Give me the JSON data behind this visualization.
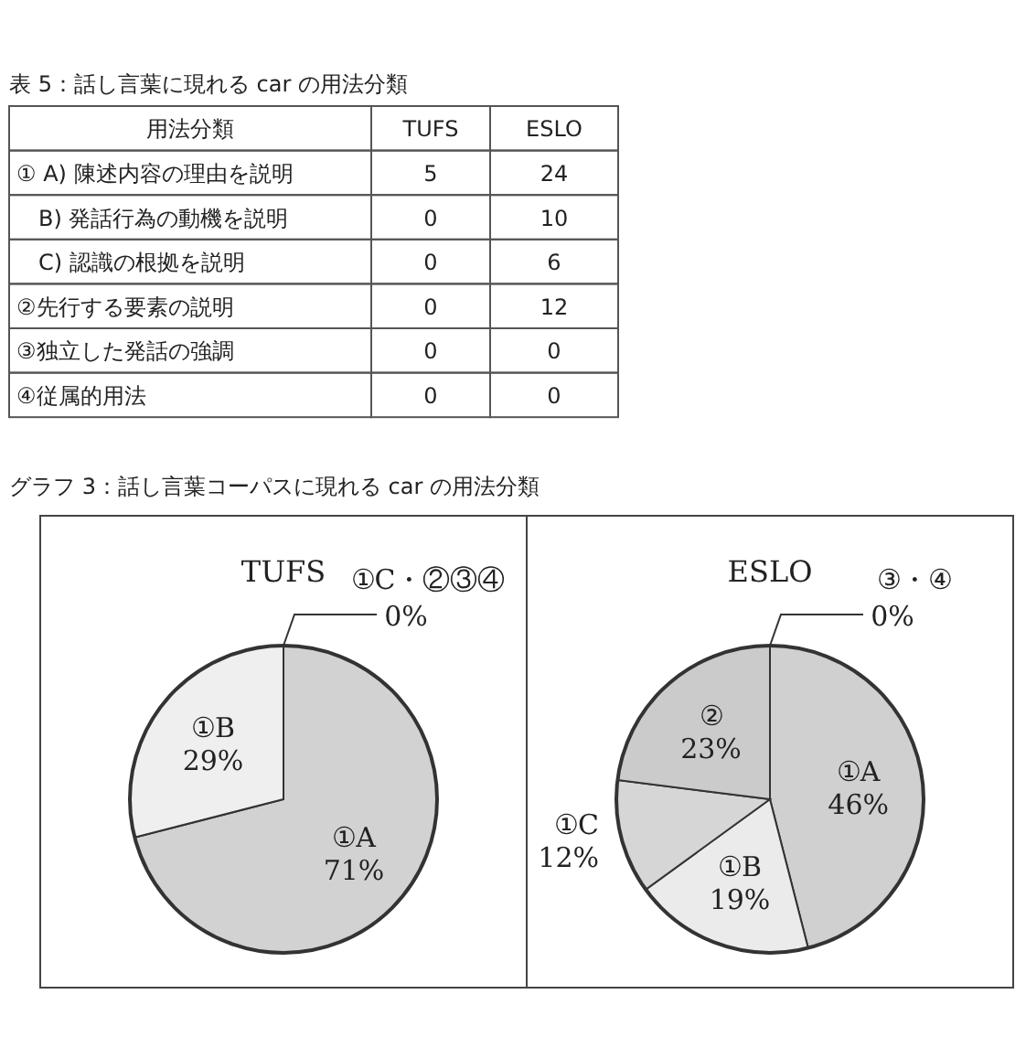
{
  "chart_data": [
    {
      "type": "other",
      "title": "表 5：話し言葉に現れる car の用法分類",
      "annotations": [
        "用法分類",
        "TUFS",
        "ESLO",
        "① A) 陳述内容の理由を説明",
        "5",
        "24",
        "　B) 発話行為の動機を説明",
        "0",
        "10",
        "　C) 認識の根拠を説明",
        "0",
        "6",
        "②先行する要素の説明",
        "0",
        "12",
        "③独立した発話の強調",
        "0",
        "0",
        "④従属的用法",
        "0",
        "0"
      ]
    },
    {
      "type": "pie",
      "title": "TUFS",
      "annotations": [
        "グラフ 3：話し言葉コーパスに現れる car の用法分類"
      ],
      "categories": [
        "①A",
        "①B",
        "①C・②③④"
      ],
      "values": [
        71,
        29,
        0
      ],
      "value_labels": [
        "71%",
        "29%",
        "0%"
      ],
      "colors": [
        "#d2d2d2",
        "#efefef",
        "#333333"
      ]
    },
    {
      "type": "pie",
      "title": "ESLO",
      "categories": [
        "①A",
        "①B",
        "①C",
        "②",
        "③・④"
      ],
      "values": [
        46,
        19,
        12,
        23,
        0
      ],
      "value_labels": [
        "46%",
        "19%",
        "12%",
        "23%",
        "0%"
      ],
      "colors": [
        "#d0d0d0",
        "#ebebeb",
        "#d6d6d6",
        "#cbcbcb",
        "#333333"
      ]
    }
  ]
}
